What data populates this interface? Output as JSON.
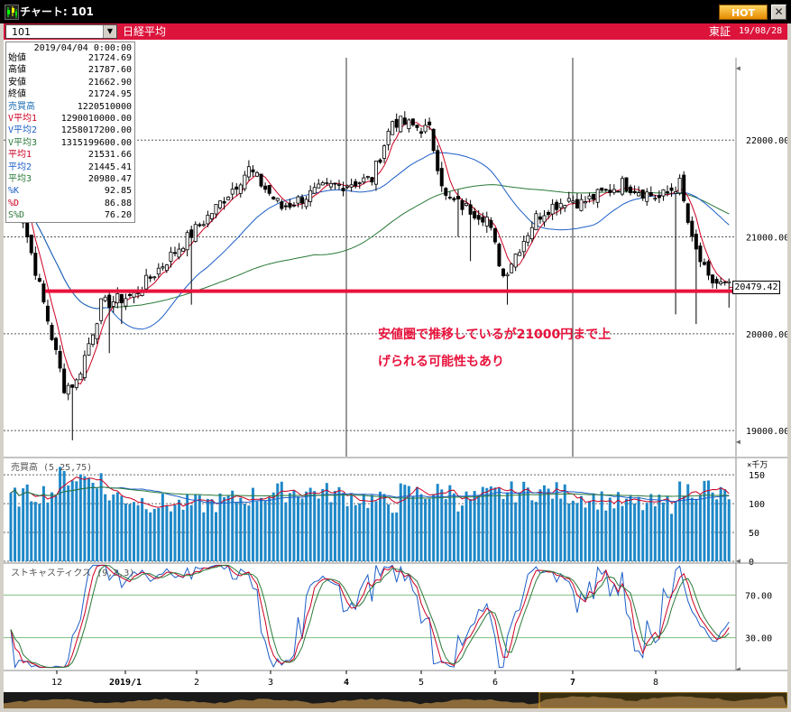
{
  "window": {
    "title": "チャート: 101",
    "hot_label": "HOT",
    "close_label": "✕",
    "icon": "candlestick-chart-icon"
  },
  "toolbar": {
    "symbol": "101",
    "index_name": "日経平均",
    "market": "東証",
    "date": "19/08/28"
  },
  "info_panel": {
    "date": "2019/04/04 0:00:00",
    "rows": [
      {
        "label": "始値",
        "value": "21724.69",
        "color": "#000000"
      },
      {
        "label": "高値",
        "value": "21787.60",
        "color": "#000000"
      },
      {
        "label": "安値",
        "value": "21662.90",
        "color": "#000000"
      },
      {
        "label": "終値",
        "value": "21724.95",
        "color": "#000000"
      },
      {
        "label": "売買高",
        "value": "1220510000",
        "color": "#1e6fb4"
      },
      {
        "label": "V平均1",
        "value": "1290010000.00",
        "color": "#cc0022"
      },
      {
        "label": "V平均2",
        "value": "1258017200.00",
        "color": "#1e5fc8"
      },
      {
        "label": "V平均3",
        "value": "1315199600.00",
        "color": "#2a7a3a"
      },
      {
        "label": "平均1",
        "value": "21531.66",
        "color": "#cc0022"
      },
      {
        "label": "平均2",
        "value": "21445.41",
        "color": "#1e5fc8"
      },
      {
        "label": "平均3",
        "value": "20980.47",
        "color": "#2a7a3a"
      },
      {
        "label": "%K",
        "value": "92.85",
        "color": "#1e5fc8"
      },
      {
        "label": "%D",
        "value": "86.88",
        "color": "#cc0022"
      },
      {
        "label": "S%D",
        "value": "76.20",
        "color": "#2a7a3a"
      }
    ]
  },
  "annotation": {
    "line1": "安値圏で推移しているが21000円まで上",
    "line2": "げられる可能性もあり"
  },
  "colors": {
    "up": "#ffffff",
    "down": "#000000",
    "ma1": "#cc0022",
    "ma2": "#1e5fc8",
    "ma3": "#2a7a3a",
    "volume": "#1e88c8",
    "support_line": "#e8133c",
    "background": "#ffffff",
    "grid": "#444444"
  },
  "chart_data": [
    {
      "type": "candlestick",
      "title": "日経平均",
      "ylim": [
        18750,
        22850
      ],
      "yticks": [
        "22000.00",
        "21000.00",
        "20000.00",
        "19000.00"
      ],
      "support_level": 20440,
      "last_price": 20479.42,
      "last_price_label": "20479.42",
      "x_labels": [
        "12",
        "2019/1",
        "2",
        "3",
        "4",
        "5",
        "6",
        "7",
        "8"
      ],
      "series_names": [
        "平均1",
        "平均2",
        "平均3"
      ],
      "n_candles": 176,
      "anchors": [
        [
          0,
          21700
        ],
        [
          13,
          19450
        ],
        [
          16,
          19500
        ],
        [
          22,
          20300
        ],
        [
          30,
          20400
        ],
        [
          50,
          21300
        ],
        [
          58,
          21700
        ],
        [
          66,
          21300
        ],
        [
          76,
          21500
        ],
        [
          88,
          21600
        ],
        [
          93,
          22200
        ],
        [
          102,
          22100
        ],
        [
          106,
          21400
        ],
        [
          116,
          21200
        ],
        [
          120,
          20600
        ],
        [
          128,
          21200
        ],
        [
          131,
          21300
        ],
        [
          136,
          21400
        ],
        [
          139,
          21350
        ],
        [
          149,
          21550
        ],
        [
          158,
          21400
        ],
        [
          163,
          21550
        ],
        [
          166,
          20950
        ],
        [
          170,
          20550
        ],
        [
          175,
          20480
        ]
      ],
      "spikes": [
        [
          15,
          18900
        ],
        [
          24,
          19800
        ],
        [
          27,
          20100
        ],
        [
          44,
          20300
        ],
        [
          109,
          21000
        ],
        [
          112,
          20750
        ],
        [
          121,
          20300
        ],
        [
          162,
          20200
        ],
        [
          167,
          20100
        ],
        [
          175,
          20270
        ]
      ]
    },
    {
      "type": "bar",
      "title": "売買高 (5,25,75)",
      "unit": "×千万",
      "yticks": [
        "150",
        "100",
        "50",
        "0"
      ],
      "ylim": [
        0,
        180
      ]
    },
    {
      "type": "line",
      "title": "ストキャスティクス (9,3,3)",
      "yticks": [
        "70.00",
        "30.00"
      ],
      "ylim": [
        0,
        100
      ],
      "series_names": [
        "%K",
        "%D",
        "S%D"
      ]
    }
  ]
}
